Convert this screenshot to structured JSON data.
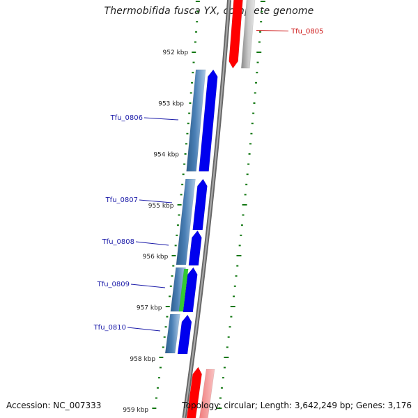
{
  "title": "Thermobifida fusca YX, complete genome",
  "accession": "Accession: NC_007333",
  "topology": "Topology: circular; Length: 3,642,249 bp; Genes: 3,176",
  "colors": {
    "backbone": "#7f7f7f",
    "tick": "#117711",
    "label_blue": "#1a1aa8",
    "label_red": "#cc1111",
    "cds_blue": "#0000ee",
    "gene_steel": "#4a7fb5",
    "red": "#ff0000",
    "pink": "#f4a0a0",
    "grey": "#b0b0b0",
    "green": "#33cc33"
  },
  "scale_labels": [
    "952 kbp",
    "953 kbp",
    "954 kbp",
    "955 kbp",
    "956 kbp",
    "957 kbp",
    "958 kbp",
    "959 kbp"
  ],
  "gene_labels": [
    {
      "id": "tfu-0805",
      "text": "Tfu_0805",
      "color": "red"
    },
    {
      "id": "tfu-0806",
      "text": "Tfu_0806",
      "color": "blue"
    },
    {
      "id": "tfu-0807",
      "text": "Tfu_0807",
      "color": "blue"
    },
    {
      "id": "tfu-0808",
      "text": "Tfu_0808",
      "color": "blue"
    },
    {
      "id": "tfu-0809",
      "text": "Tfu_0809",
      "color": "blue"
    },
    {
      "id": "tfu-0810",
      "text": "Tfu_0810",
      "color": "blue"
    }
  ]
}
